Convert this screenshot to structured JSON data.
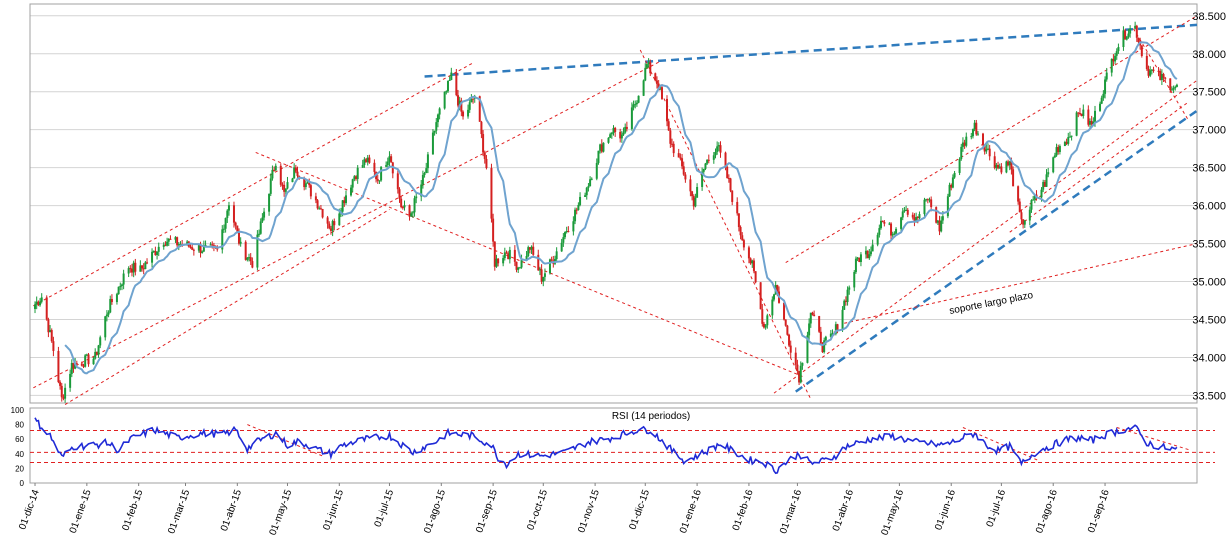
{
  "colors": {
    "up_candle": "#1a9a3a",
    "down_candle": "#d42020",
    "moving_average": "#6fa3cf",
    "rsi_line": "#1f2ad6",
    "trendline_red": "#e02020",
    "trendline_blue": "#2f7bbd",
    "grid": "#d4d4d4",
    "axis_text": "#000000"
  },
  "chart_data": [
    {
      "type": "candlestick",
      "name": "price",
      "title": "",
      "ylim": [
        33400,
        38550
      ],
      "y_ticks": [
        33500,
        34000,
        34500,
        35000,
        35500,
        36000,
        36500,
        37000,
        37500,
        38000,
        38500
      ],
      "y_tick_labels": [
        "33.500",
        "34.000",
        "34.500",
        "35.000",
        "35.500",
        "36.000",
        "36.500",
        "37.000",
        "37.500",
        "38.000",
        "38.500"
      ],
      "grid": "horizontal",
      "anchors": [
        [
          "2014-12-01",
          34700
        ],
        [
          "2014-12-05",
          34800
        ],
        [
          "2014-12-12",
          34100
        ],
        [
          "2014-12-17",
          33450
        ],
        [
          "2014-12-23",
          33900
        ],
        [
          "2015-01-06",
          34000
        ],
        [
          "2015-01-13",
          34600
        ],
        [
          "2015-01-26",
          35200
        ],
        [
          "2015-02-02",
          35150
        ],
        [
          "2015-02-16",
          35550
        ],
        [
          "2015-03-06",
          35450
        ],
        [
          "2015-03-20",
          35400
        ],
        [
          "2015-03-27",
          36050
        ],
        [
          "2015-04-03",
          35450
        ],
        [
          "2015-04-10",
          35250
        ],
        [
          "2015-04-24",
          36600
        ],
        [
          "2015-04-29",
          36150
        ],
        [
          "2015-05-06",
          36500
        ],
        [
          "2015-05-20",
          36000
        ],
        [
          "2015-05-27",
          35700
        ],
        [
          "2015-06-10",
          36400
        ],
        [
          "2015-06-17",
          36600
        ],
        [
          "2015-06-24",
          36350
        ],
        [
          "2015-07-01",
          36700
        ],
        [
          "2015-07-08",
          36000
        ],
        [
          "2015-07-13",
          35850
        ],
        [
          "2015-07-22",
          36400
        ],
        [
          "2015-07-29",
          37100
        ],
        [
          "2015-08-07",
          37700
        ],
        [
          "2015-08-14",
          37150
        ],
        [
          "2015-08-21",
          37450
        ],
        [
          "2015-08-28",
          36500
        ],
        [
          "2015-09-02",
          35250
        ],
        [
          "2015-09-09",
          35400
        ],
        [
          "2015-09-16",
          35200
        ],
        [
          "2015-09-23",
          35450
        ],
        [
          "2015-09-30",
          35050
        ],
        [
          "2015-10-07",
          35300
        ],
        [
          "2015-10-14",
          35650
        ],
        [
          "2015-10-21",
          35950
        ],
        [
          "2015-10-28",
          36300
        ],
        [
          "2015-11-04",
          36750
        ],
        [
          "2015-11-11",
          37000
        ],
        [
          "2015-11-18",
          36900
        ],
        [
          "2015-11-25",
          37350
        ],
        [
          "2015-12-02",
          37850
        ],
        [
          "2015-12-09",
          37600
        ],
        [
          "2015-12-16",
          36850
        ],
        [
          "2015-12-23",
          36500
        ],
        [
          "2015-12-30",
          36050
        ],
        [
          "2016-01-06",
          36550
        ],
        [
          "2016-01-13",
          36800
        ],
        [
          "2016-01-20",
          36300
        ],
        [
          "2016-01-27",
          35650
        ],
        [
          "2016-02-03",
          35200
        ],
        [
          "2016-02-10",
          34400
        ],
        [
          "2016-02-17",
          34950
        ],
        [
          "2016-02-24",
          34300
        ],
        [
          "2016-03-02",
          33750
        ],
        [
          "2016-03-09",
          34600
        ],
        [
          "2016-03-16",
          34150
        ],
        [
          "2016-03-23",
          34300
        ],
        [
          "2016-03-30",
          34800
        ],
        [
          "2016-04-06",
          35300
        ],
        [
          "2016-04-13",
          35400
        ],
        [
          "2016-04-20",
          35800
        ],
        [
          "2016-04-27",
          35650
        ],
        [
          "2016-05-04",
          36000
        ],
        [
          "2016-05-11",
          35800
        ],
        [
          "2016-05-18",
          36100
        ],
        [
          "2016-05-25",
          35700
        ],
        [
          "2016-06-01",
          36300
        ],
        [
          "2016-06-08",
          36800
        ],
        [
          "2016-06-15",
          37050
        ],
        [
          "2016-06-22",
          36750
        ],
        [
          "2016-06-29",
          36500
        ],
        [
          "2016-07-06",
          36550
        ],
        [
          "2016-07-13",
          35750
        ],
        [
          "2016-07-20",
          36050
        ],
        [
          "2016-07-27",
          36300
        ],
        [
          "2016-08-03",
          36750
        ],
        [
          "2016-08-10",
          36900
        ],
        [
          "2016-08-17",
          37250
        ],
        [
          "2016-08-24",
          37050
        ],
        [
          "2016-08-31",
          37550
        ],
        [
          "2016-09-07",
          38050
        ],
        [
          "2016-09-14",
          38300
        ],
        [
          "2016-09-19",
          38350
        ],
        [
          "2016-09-26",
          37800
        ],
        [
          "2016-10-03",
          37700
        ],
        [
          "2016-10-10",
          37600
        ],
        [
          "2016-10-14",
          37550
        ]
      ]
    },
    {
      "type": "line",
      "name": "rsi",
      "title": "RSI (14 periodos)",
      "ylim": [
        0,
        100
      ],
      "y_ticks": [
        0,
        20,
        40,
        60,
        80,
        100
      ],
      "y_tick_labels": [
        "0",
        "20",
        "40",
        "60",
        "80",
        "100"
      ],
      "reference_levels": [
        72,
        42,
        28
      ],
      "anchors": [
        [
          "2014-12-01",
          86
        ],
        [
          "2014-12-10",
          65
        ],
        [
          "2014-12-17",
          35
        ],
        [
          "2014-12-24",
          50
        ],
        [
          "2015-01-06",
          52
        ],
        [
          "2015-01-13",
          55
        ],
        [
          "2015-01-20",
          45
        ],
        [
          "2015-01-27",
          60
        ],
        [
          "2015-02-10",
          73
        ],
        [
          "2015-02-24",
          62
        ],
        [
          "2015-03-10",
          68
        ],
        [
          "2015-03-24",
          67
        ],
        [
          "2015-03-31",
          73
        ],
        [
          "2015-04-07",
          47
        ],
        [
          "2015-04-14",
          58
        ],
        [
          "2015-04-24",
          68
        ],
        [
          "2015-05-01",
          52
        ],
        [
          "2015-05-08",
          57
        ],
        [
          "2015-05-20",
          45
        ],
        [
          "2015-05-27",
          40
        ],
        [
          "2015-06-03",
          52
        ],
        [
          "2015-06-17",
          60
        ],
        [
          "2015-07-01",
          65
        ],
        [
          "2015-07-15",
          42
        ],
        [
          "2015-07-29",
          57
        ],
        [
          "2015-08-05",
          68
        ],
        [
          "2015-08-19",
          65
        ],
        [
          "2015-08-31",
          52
        ],
        [
          "2015-09-04",
          35
        ],
        [
          "2015-09-09",
          26
        ],
        [
          "2015-09-16",
          40
        ],
        [
          "2015-09-30",
          37
        ],
        [
          "2015-10-14",
          42
        ],
        [
          "2015-10-28",
          56
        ],
        [
          "2015-11-11",
          62
        ],
        [
          "2015-11-25",
          72
        ],
        [
          "2015-12-04",
          73
        ],
        [
          "2015-12-11",
          58
        ],
        [
          "2015-12-18",
          42
        ],
        [
          "2015-12-25",
          30
        ],
        [
          "2016-01-08",
          45
        ],
        [
          "2016-01-15",
          54
        ],
        [
          "2016-01-22",
          44
        ],
        [
          "2016-02-01",
          32
        ],
        [
          "2016-02-10",
          28
        ],
        [
          "2016-02-17",
          17
        ],
        [
          "2016-02-24",
          30
        ],
        [
          "2016-03-02",
          40
        ],
        [
          "2016-03-09",
          27
        ],
        [
          "2016-03-16",
          30
        ],
        [
          "2016-03-23",
          36
        ],
        [
          "2016-03-30",
          50
        ],
        [
          "2016-04-13",
          60
        ],
        [
          "2016-04-27",
          64
        ],
        [
          "2016-05-11",
          56
        ],
        [
          "2016-05-25",
          52
        ],
        [
          "2016-06-01",
          55
        ],
        [
          "2016-06-08",
          62
        ],
        [
          "2016-06-15",
          68
        ],
        [
          "2016-06-22",
          52
        ],
        [
          "2016-06-29",
          44
        ],
        [
          "2016-07-06",
          50
        ],
        [
          "2016-07-13",
          26
        ],
        [
          "2016-07-20",
          40
        ],
        [
          "2016-07-27",
          48
        ],
        [
          "2016-08-10",
          60
        ],
        [
          "2016-08-17",
          62
        ],
        [
          "2016-08-24",
          58
        ],
        [
          "2016-08-31",
          65
        ],
        [
          "2016-09-07",
          70
        ],
        [
          "2016-09-14",
          74
        ],
        [
          "2016-09-19",
          76
        ],
        [
          "2016-09-26",
          55
        ],
        [
          "2016-10-03",
          50
        ],
        [
          "2016-10-10",
          47
        ],
        [
          "2016-10-14",
          46
        ]
      ]
    }
  ],
  "x_axis": {
    "tick_labels": [
      "01-dic-14",
      "01-ene-15",
      "01-feb-15",
      "01-mar-15",
      "01-abr-15",
      "01-may-15",
      "01-jun-15",
      "01-jul-15",
      "01-ago-15",
      "01-sep-15",
      "01-oct-15",
      "01-nov-15",
      "01-dic-15",
      "01-ene-16",
      "01-feb-16",
      "01-mar-16",
      "01-abr-16",
      "01-may-16",
      "01-jun-16",
      "01-jul-16",
      "01-ago-16",
      "01-sep-16"
    ]
  },
  "annotations": {
    "support_label": "soporte largo plazo"
  },
  "trendlines": [
    {
      "name": "upper-resistance",
      "color": "blue",
      "dashed": true,
      "from": [
        "2015-07-22",
        37700
      ],
      "to": [
        "2016-10-26",
        38380
      ]
    },
    {
      "name": "long-term-support",
      "color": "blue",
      "dashed": true,
      "from": [
        "2016-02-29",
        33550
      ],
      "to": [
        "2016-10-26",
        37250
      ]
    },
    {
      "name": "channel-upper",
      "color": "red",
      "dashed": true,
      "from": [
        "2014-11-30",
        34680
      ],
      "to": [
        "2015-08-20",
        37880
      ]
    },
    {
      "name": "channel-lower",
      "color": "red",
      "dashed": true,
      "from": [
        "2014-11-30",
        33600
      ],
      "to": [
        "2015-12-10",
        37900
      ]
    },
    {
      "name": "channel-lower-2",
      "color": "red",
      "dashed": true,
      "from": [
        "2014-12-19",
        33380
      ],
      "to": [
        "2015-07-01",
        35950
      ]
    },
    {
      "name": "downtrend-2015",
      "color": "red",
      "dashed": true,
      "from": [
        "2015-04-12",
        36700
      ],
      "to": [
        "2016-03-04",
        33750
      ]
    },
    {
      "name": "downtrend-dic15",
      "color": "red",
      "dashed": true,
      "from": [
        "2015-11-28",
        38050
      ],
      "to": [
        "2016-03-09",
        33450
      ]
    },
    {
      "name": "channel-2016-upper",
      "color": "red",
      "dashed": true,
      "from": [
        "2016-02-23",
        35250
      ],
      "to": [
        "2016-10-26",
        38500
      ]
    },
    {
      "name": "channel-2016-lower",
      "color": "red",
      "dashed": true,
      "from": [
        "2016-02-16",
        33530
      ],
      "to": [
        "2016-10-26",
        37650
      ]
    },
    {
      "name": "support-long",
      "color": "red",
      "dashed": true,
      "from": [
        "2016-03-29",
        34450
      ],
      "to": [
        "2016-10-26",
        35500
      ]
    },
    {
      "name": "channel-2016-mid",
      "color": "red",
      "dashed": true,
      "from": [
        "2016-07-06",
        35650
      ],
      "to": [
        "2016-10-20",
        37350
      ]
    },
    {
      "name": "pullback-sep16",
      "color": "red",
      "dashed": true,
      "from": [
        "2016-09-18",
        38330
      ],
      "to": [
        "2016-10-21",
        37120
      ]
    }
  ],
  "rsi_trendlines": [
    {
      "from": [
        "2015-04-07",
        80
      ],
      "to": [
        "2015-05-22",
        37
      ]
    },
    {
      "from": [
        "2016-06-08",
        76
      ],
      "to": [
        "2016-07-24",
        30
      ]
    },
    {
      "from": [
        "2016-09-08",
        76
      ],
      "to": [
        "2016-10-22",
        45
      ]
    }
  ]
}
